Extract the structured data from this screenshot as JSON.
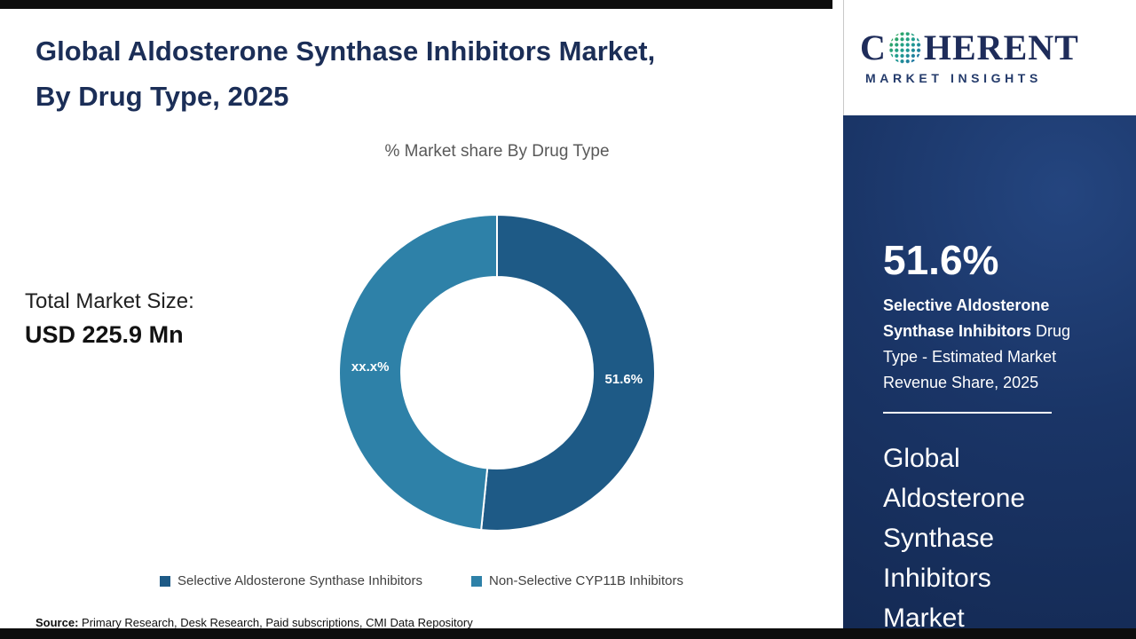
{
  "header": {
    "title_line1": "Global Aldosterone Synthase Inhibitors Market,",
    "title_line2": "By Drug Type, 2025"
  },
  "chart_data": {
    "type": "pie",
    "donut": true,
    "title": "% Market share By Drug Type",
    "slices": [
      {
        "label": "Selective Aldosterone Synthase Inhibitors",
        "value": 51.6,
        "display": "51.6%",
        "color": "#1e5a86"
      },
      {
        "label": "Non-Selective CYP11B Inhibitors",
        "value": 48.4,
        "display": "xx.x%",
        "color": "#2e81a8"
      }
    ],
    "legend_position": "bottom"
  },
  "total_market": {
    "label": "Total Market Size:",
    "value": "USD 225.9 Mn"
  },
  "source": {
    "label": "Source:",
    "text": " Primary Research, Desk Research, Paid subscriptions, CMI Data Repository"
  },
  "logo": {
    "first_letter": "C",
    "rest": "HERENT",
    "tagline": "MARKET INSIGHTS"
  },
  "sidebar": {
    "stat_value": "51.6%",
    "stat_bold": "Selective Aldosterone Synthase Inhibitors",
    "stat_rest": " Drug Type - Estimated Market Revenue Share, 2025",
    "market_name": "Global Aldosterone Synthase Inhibitors Market"
  }
}
